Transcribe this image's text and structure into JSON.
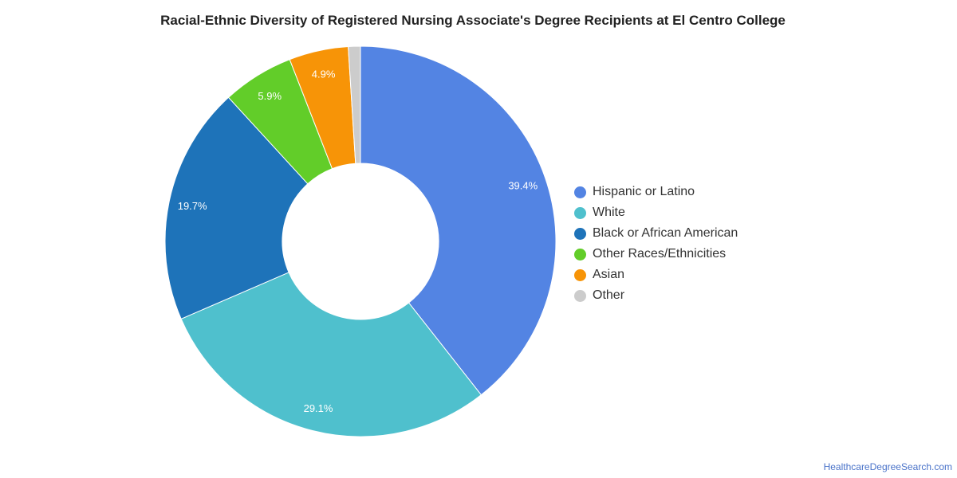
{
  "chart_data": {
    "type": "pie",
    "title": "Racial-Ethnic Diversity of Registered Nursing Associate's Degree Recipients at El Centro College",
    "legend_position": "right",
    "donut": true,
    "slices": [
      {
        "name": "Hispanic or Latino",
        "value": 39.4,
        "label": "39.4%",
        "color": "#5384e3"
      },
      {
        "name": "White",
        "value": 29.1,
        "label": "29.1%",
        "color": "#4fc0cd"
      },
      {
        "name": "Black or African American",
        "value": 19.7,
        "label": "19.7%",
        "color": "#1e73b9"
      },
      {
        "name": "Other Races/Ethnicities",
        "value": 5.9,
        "label": "5.9%",
        "color": "#62cd29"
      },
      {
        "name": "Asian",
        "value": 4.9,
        "label": "4.9%",
        "color": "#f79407"
      },
      {
        "name": "Other",
        "value": 1.0,
        "label": "",
        "color": "#cccccc"
      }
    ]
  },
  "footer": {
    "source": "HealthcareDegreeSearch.com"
  }
}
